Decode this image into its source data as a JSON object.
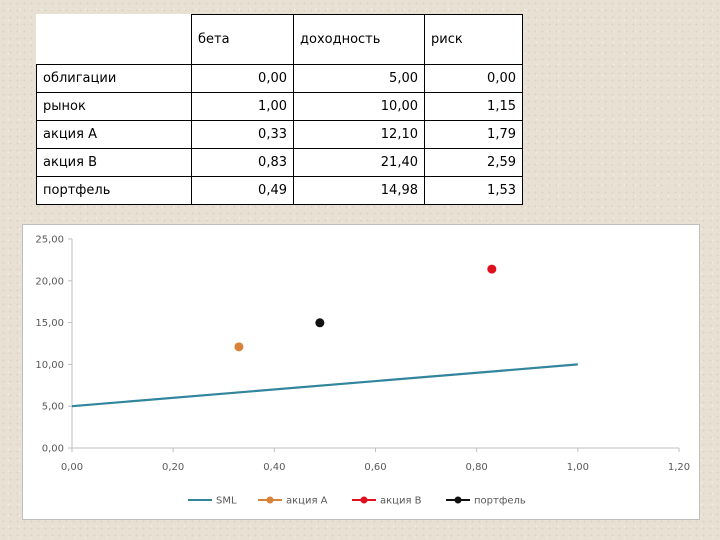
{
  "table": {
    "columns": [
      "",
      "бета",
      "доходность",
      "риск"
    ],
    "rows": [
      {
        "label": "облигации",
        "beta": "0,00",
        "return": "5,00",
        "risk": "0,00"
      },
      {
        "label": "рынок",
        "beta": "1,00",
        "return": "10,00",
        "risk": "1,15"
      },
      {
        "label": "акция А",
        "beta": "0,33",
        "return": "12,10",
        "risk": "1,79"
      },
      {
        "label": "акция В",
        "beta": "0,83",
        "return": "21,40",
        "risk": "2,59"
      },
      {
        "label": "портфель",
        "beta": "0,49",
        "return": "14,98",
        "risk": "1,53"
      }
    ]
  },
  "chart_data": {
    "type": "scatter",
    "title": "",
    "xlabel": "",
    "ylabel": "",
    "xlim": [
      0,
      1.2
    ],
    "ylim": [
      0,
      25
    ],
    "x_ticks": [
      "0,00",
      "0,20",
      "0,40",
      "0,60",
      "0,80",
      "1,00",
      "1,20"
    ],
    "y_ticks": [
      "0,00",
      "5,00",
      "10,00",
      "15,00",
      "20,00",
      "25,00"
    ],
    "grid": false,
    "legend_position": "bottom",
    "series": [
      {
        "name": "SML",
        "kind": "line",
        "color": "#31859c",
        "points": [
          [
            0,
            5
          ],
          [
            1,
            10
          ]
        ]
      },
      {
        "name": "акция А",
        "kind": "marker",
        "color": "#d8833a",
        "points": [
          [
            0.33,
            12.1
          ]
        ]
      },
      {
        "name": "акция В",
        "kind": "marker",
        "color": "#e0101e",
        "points": [
          [
            0.83,
            21.4
          ]
        ]
      },
      {
        "name": "портфель",
        "kind": "marker",
        "color": "#111111",
        "points": [
          [
            0.49,
            14.98
          ]
        ]
      }
    ]
  }
}
